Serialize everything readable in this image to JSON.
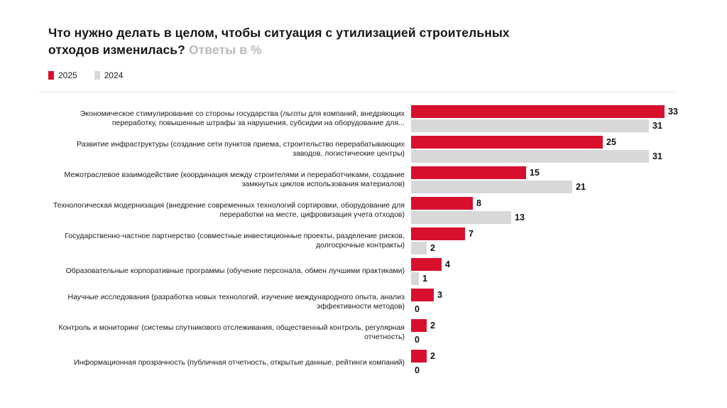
{
  "title": {
    "main": "Что нужно делать в целом, чтобы ситуация с утилизацией строительных отходов изменилась?",
    "subtitle": "Ответы в %"
  },
  "colors": {
    "series_2025": "#d8102e",
    "series_2024": "#d8d8d8",
    "title_text": "#161616",
    "subtitle_text": "#b9b9b9",
    "divider": "#e2e2e2"
  },
  "chart_data": {
    "type": "bar",
    "orientation": "horizontal",
    "title": "Что нужно делать в целом, чтобы ситуация с утилизацией строительных отходов изменилась? Ответы в %",
    "value_unit": "%",
    "xlim": [
      0,
      33
    ],
    "grid": false,
    "legend_position": "top-left",
    "data_labels": true,
    "categories": [
      "Экономическое стимулирование со стороны государства (льготы для компаний, внедряющих переработку, повышенные штрафы за нарушения, субсидии на оборудование для...",
      "Развитие инфраструктуры (создание сети пунктов приема, строительство перерабатывающих заводов, логистические центры)",
      "Межотраслевое взаимодействие (координация между строителями и переработчиками, создание замкнутых циклов использования материалов)",
      "Технологическая модернизация (внедрение современных технологий сортировки, оборудование для переработки на месте, цифровизация учета отходов)",
      "Государственно-частное партнерство (совместные инвестиционные проекты, разделение рисков, долгосрочные контракты)",
      "Образовательные корпоративные программы (обучение персонала, обмен лучшими практиками)",
      "Научные исследования (разработка новых технологий, изучение международного опыта, анализ эффективности методов)",
      "Контроль и мониторинг (системы спутникового отслеживания, общественный контроль, регулярная отчетность)",
      "Информационная прозрачность (публичная отчетность, открытые данные, рейтинги компаний)"
    ],
    "series": [
      {
        "name": "2025",
        "color": "#d8102e",
        "values": [
          33,
          25,
          15,
          8,
          7,
          4,
          3,
          2,
          2
        ]
      },
      {
        "name": "2024",
        "color": "#d8d8d8",
        "values": [
          31,
          31,
          21,
          13,
          2,
          1,
          0,
          0,
          0
        ]
      }
    ]
  }
}
